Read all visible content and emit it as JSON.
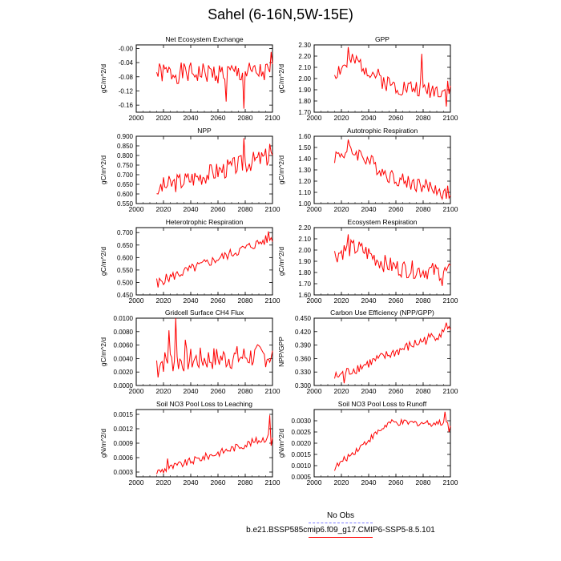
{
  "title": "Sahel (6-16N,5W-15E)",
  "legend": {
    "obs_label": "No Obs",
    "obs_color": "#7a7aff",
    "model_label": "b.e21.BSSP585cmip6.f09_g17.CMIP6-SSP5-8.5.101",
    "model_color": "#ff0000"
  },
  "chart_data": [
    {
      "type": "line",
      "title": "Net Ecosystem Exchange",
      "ylabel": "gC/m^2/d",
      "xlim": [
        2000,
        2100
      ],
      "ylim": [
        -0.18,
        0.01
      ],
      "xticks": [
        2000,
        2020,
        2040,
        2060,
        2080,
        2100
      ],
      "yticks": [
        -0.16,
        -0.12,
        -0.08,
        -0.04,
        0.0
      ],
      "yticklabels": [
        "-0.16",
        "-0.12",
        "-0.08",
        "-0.04",
        "-0.00"
      ],
      "series": [
        {
          "color": "#ff0000",
          "x_start": 2015,
          "x_end": 2100,
          "seed": 1,
          "trend": [
            -0.07,
            -0.07
          ],
          "noise": 0.03,
          "spikes": [
            [
              2079,
              -0.17
            ],
            [
              2099,
              -0.01
            ],
            [
              2066,
              -0.15
            ]
          ]
        }
      ]
    },
    {
      "type": "line",
      "title": "GPP",
      "ylabel": "gC/m^2/d",
      "xlim": [
        2000,
        2100
      ],
      "ylim": [
        1.7,
        2.3
      ],
      "xticks": [
        2000,
        2020,
        2040,
        2060,
        2080,
        2100
      ],
      "yticks": [
        1.7,
        1.8,
        1.9,
        2.0,
        2.1,
        2.2,
        2.3
      ],
      "yticklabels": [
        "1.70",
        "1.80",
        "1.90",
        "2.00",
        "2.10",
        "2.20",
        "2.30"
      ],
      "series": [
        {
          "color": "#ff0000",
          "x_start": 2015,
          "x_end": 2100,
          "seed": 2,
          "trend": [
            1.95,
            1.9
          ],
          "bump": [
            2030,
            0.2
          ],
          "noise": 0.08,
          "spikes": [
            [
              2025,
              2.28
            ],
            [
              2079,
              2.22
            ],
            [
              2097,
              1.75
            ]
          ]
        }
      ]
    },
    {
      "type": "line",
      "title": "NPP",
      "ylabel": "gC/m^2/d",
      "xlim": [
        2000,
        2100
      ],
      "ylim": [
        0.55,
        0.9
      ],
      "xticks": [
        2000,
        2020,
        2040,
        2060,
        2080,
        2100
      ],
      "yticks": [
        0.55,
        0.6,
        0.65,
        0.7,
        0.75,
        0.8,
        0.85,
        0.9
      ],
      "yticklabels": [
        "0.550",
        "0.600",
        "0.650",
        "0.700",
        "0.750",
        "0.800",
        "0.850",
        "0.900"
      ],
      "series": [
        {
          "color": "#ff0000",
          "x_start": 2015,
          "x_end": 2100,
          "seed": 3,
          "trend": [
            0.63,
            0.8
          ],
          "noise": 0.05,
          "spikes": [
            [
              2079,
              0.89
            ],
            [
              2098,
              0.86
            ],
            [
              2016,
              0.6
            ]
          ]
        }
      ]
    },
    {
      "type": "line",
      "title": "Autotrophic Respiration",
      "ylabel": "gC/m^2/d",
      "xlim": [
        2000,
        2100
      ],
      "ylim": [
        1.0,
        1.6
      ],
      "xticks": [
        2000,
        2020,
        2040,
        2060,
        2080,
        2100
      ],
      "yticks": [
        1.0,
        1.1,
        1.2,
        1.3,
        1.4,
        1.5,
        1.6
      ],
      "yticklabels": [
        "1.00",
        "1.10",
        "1.20",
        "1.30",
        "1.40",
        "1.50",
        "1.60"
      ],
      "series": [
        {
          "color": "#ff0000",
          "x_start": 2015,
          "x_end": 2100,
          "seed": 4,
          "trend": [
            1.35,
            1.1
          ],
          "bump": [
            2030,
            0.15
          ],
          "noise": 0.07,
          "spikes": [
            [
              2025,
              1.57
            ],
            [
              2094,
              1.04
            ]
          ]
        }
      ]
    },
    {
      "type": "line",
      "title": "Heterotrophic Respiration",
      "ylabel": "gC/m^2/d",
      "xlim": [
        2000,
        2100
      ],
      "ylim": [
        0.45,
        0.72
      ],
      "xticks": [
        2000,
        2020,
        2040,
        2060,
        2080,
        2100
      ],
      "yticks": [
        0.45,
        0.5,
        0.55,
        0.6,
        0.65,
        0.7
      ],
      "yticklabels": [
        "0.450",
        "0.500",
        "0.550",
        "0.600",
        "0.650",
        "0.700"
      ],
      "series": [
        {
          "color": "#ff0000",
          "x_start": 2015,
          "x_end": 2100,
          "seed": 5,
          "trend": [
            0.5,
            0.68
          ],
          "noise": 0.02,
          "spikes": [
            [
              2016,
              0.48
            ],
            [
              2097,
              0.705
            ]
          ]
        }
      ]
    },
    {
      "type": "line",
      "title": "Ecosystem Respiration",
      "ylabel": "gC/m^2/d",
      "xlim": [
        2000,
        2100
      ],
      "ylim": [
        1.6,
        2.2
      ],
      "xticks": [
        2000,
        2020,
        2040,
        2060,
        2080,
        2100
      ],
      "yticks": [
        1.6,
        1.7,
        1.8,
        1.9,
        2.0,
        2.1,
        2.2
      ],
      "yticklabels": [
        "1.60",
        "1.70",
        "1.80",
        "1.90",
        "2.00",
        "2.10",
        "2.20"
      ],
      "series": [
        {
          "color": "#ff0000",
          "x_start": 2015,
          "x_end": 2100,
          "seed": 6,
          "trend": [
            1.88,
            1.8
          ],
          "bump": [
            2030,
            0.15
          ],
          "noise": 0.08,
          "spikes": [
            [
              2025,
              2.14
            ],
            [
              2094,
              1.68
            ]
          ]
        }
      ]
    },
    {
      "type": "line",
      "title": "Gridcell Surface CH4 Flux",
      "ylabel": "gC/m^2/d",
      "xlim": [
        2000,
        2100
      ],
      "ylim": [
        0.0,
        0.01
      ],
      "xticks": [
        2000,
        2020,
        2040,
        2060,
        2080,
        2100
      ],
      "yticks": [
        0.0,
        0.002,
        0.004,
        0.006,
        0.008,
        0.01
      ],
      "yticklabels": [
        "0.0000",
        "0.0020",
        "0.0040",
        "0.0060",
        "0.0080",
        "0.0100"
      ],
      "series": [
        {
          "color": "#ff0000",
          "x_start": 2015,
          "x_end": 2100,
          "seed": 7,
          "trend": [
            0.0035,
            0.0045
          ],
          "noise": 0.0018,
          "spikes": [
            [
              2029,
              0.0101
            ],
            [
              2024,
              0.0082
            ],
            [
              2036,
              0.0068
            ],
            [
              2016,
              0.0012
            ]
          ]
        }
      ]
    },
    {
      "type": "line",
      "title": "Carbon Use Efficiency (NPP/GPP)",
      "ylabel": "NPP/GPP",
      "xlim": [
        2000,
        2100
      ],
      "ylim": [
        0.3,
        0.45
      ],
      "xticks": [
        2000,
        2020,
        2040,
        2060,
        2080,
        2100
      ],
      "yticks": [
        0.3,
        0.33,
        0.36,
        0.39,
        0.42,
        0.45
      ],
      "yticklabels": [
        "0.300",
        "0.330",
        "0.360",
        "0.390",
        "0.420",
        "0.450"
      ],
      "series": [
        {
          "color": "#ff0000",
          "x_start": 2015,
          "x_end": 2100,
          "seed": 8,
          "trend": [
            0.318,
            0.425
          ],
          "noise": 0.012,
          "spikes": [
            [
              2022,
              0.305
            ],
            [
              2097,
              0.44
            ]
          ]
        }
      ]
    },
    {
      "type": "line",
      "title": "Soil NO3 Pool Loss to Leaching",
      "ylabel": "gN/m^2/d",
      "xlim": [
        2000,
        2100
      ],
      "ylim": [
        0.0002,
        0.0016
      ],
      "xticks": [
        2000,
        2020,
        2040,
        2060,
        2080,
        2100
      ],
      "yticks": [
        0.0003,
        0.0006,
        0.0009,
        0.0012,
        0.0015
      ],
      "yticklabels": [
        "0.0003",
        "0.0006",
        "0.0009",
        "0.0012",
        "0.0015"
      ],
      "series": [
        {
          "color": "#ff0000",
          "x_start": 2015,
          "x_end": 2100,
          "seed": 9,
          "trend": [
            0.0003,
            0.00105
          ],
          "noise": 8e-05,
          "spikes": [
            [
              2023,
              0.00058
            ],
            [
              2098,
              0.00148
            ],
            [
              2099,
              0.00085
            ]
          ]
        }
      ]
    },
    {
      "type": "line",
      "title": "Soil NO3 Pool Loss to Runoff",
      "ylabel": "gN/m^2/d",
      "xlim": [
        2000,
        2100
      ],
      "ylim": [
        0.0005,
        0.0035
      ],
      "xticks": [
        2000,
        2020,
        2040,
        2060,
        2080,
        2100
      ],
      "yticks": [
        0.0005,
        0.001,
        0.0015,
        0.002,
        0.0025,
        0.003
      ],
      "yticklabels": [
        "0.0005",
        "0.0010",
        "0.0015",
        "0.0020",
        "0.0025",
        "0.0030"
      ],
      "series": [
        {
          "color": "#ff0000",
          "x_start": 2015,
          "x_end": 2100,
          "seed": 10,
          "plateau": [
            2055,
            0.0029
          ],
          "start_val": 0.0009,
          "noise": 0.00015,
          "spikes": [
            [
              2096,
              0.0034
            ],
            [
              2099,
              0.0025
            ]
          ]
        }
      ]
    }
  ]
}
